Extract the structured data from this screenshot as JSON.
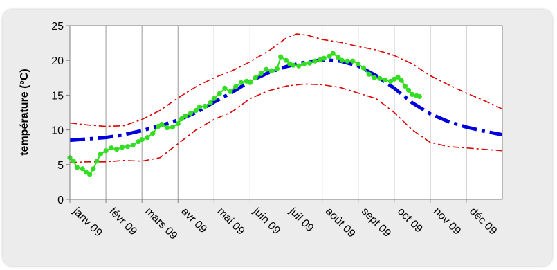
{
  "chart_data": {
    "type": "line",
    "title": "",
    "xlabel": "",
    "ylabel": "température (°C)",
    "categories": [
      "janv 09",
      "févr 09",
      "mars 09",
      "avr 09",
      "mai 09",
      "juin 09",
      "juil 09",
      "août 09",
      "sept 09",
      "oct 09",
      "nov 09",
      "déc 09"
    ],
    "xlim": [
      0,
      12
    ],
    "ylim": [
      0,
      25
    ],
    "yticks": [
      0,
      5,
      10,
      15,
      20,
      25
    ],
    "grid": "vertical",
    "legend": "none",
    "series": [
      {
        "color": "#0000dd",
        "style": "dash-dot-thick",
        "points": [
          [
            0,
            8.5
          ],
          [
            0.5,
            8.7
          ],
          [
            1,
            8.9
          ],
          [
            1.5,
            9.3
          ],
          [
            2,
            9.9
          ],
          [
            2.5,
            10.6
          ],
          [
            3,
            11.4
          ],
          [
            3.5,
            12.5
          ],
          [
            4,
            14.0
          ],
          [
            4.5,
            15.4
          ],
          [
            5,
            17.0
          ],
          [
            5.5,
            18.2
          ],
          [
            6,
            19.1
          ],
          [
            6.5,
            19.7
          ],
          [
            7,
            20.1
          ],
          [
            7.5,
            19.9
          ],
          [
            8,
            19.2
          ],
          [
            8.5,
            17.8
          ],
          [
            9,
            16.0
          ],
          [
            9.5,
            13.9
          ],
          [
            10,
            12.3
          ],
          [
            10.5,
            11.2
          ],
          [
            11,
            10.4
          ],
          [
            11.5,
            9.8
          ],
          [
            12,
            9.3
          ]
        ]
      },
      {
        "color": "#dd0000",
        "style": "dash-dot-thin",
        "points": [
          [
            0,
            11.0
          ],
          [
            0.5,
            10.7
          ],
          [
            1,
            10.5
          ],
          [
            1.5,
            10.6
          ],
          [
            2,
            11.5
          ],
          [
            2.5,
            12.8
          ],
          [
            3,
            14.6
          ],
          [
            3.5,
            16.2
          ],
          [
            4,
            17.5
          ],
          [
            4.5,
            18.5
          ],
          [
            5,
            19.8
          ],
          [
            5.5,
            21.3
          ],
          [
            6,
            23.2
          ],
          [
            6.3,
            23.8
          ],
          [
            6.6,
            23.6
          ],
          [
            7,
            23.0
          ],
          [
            7.5,
            22.6
          ],
          [
            8,
            22.0
          ],
          [
            8.5,
            21.5
          ],
          [
            9,
            20.7
          ],
          [
            9.5,
            19.5
          ],
          [
            10,
            17.8
          ],
          [
            10.5,
            16.5
          ],
          [
            11,
            15.3
          ],
          [
            11.5,
            14.2
          ],
          [
            12,
            13.0
          ]
        ]
      },
      {
        "color": "#dd0000",
        "style": "dash-dot-thin",
        "points": [
          [
            0,
            5.3
          ],
          [
            0.5,
            5.4
          ],
          [
            1,
            5.4
          ],
          [
            1.5,
            5.6
          ],
          [
            2,
            5.5
          ],
          [
            2.5,
            6.0
          ],
          [
            3,
            8.0
          ],
          [
            3.5,
            10.0
          ],
          [
            4,
            11.5
          ],
          [
            4.5,
            12.6
          ],
          [
            5,
            14.5
          ],
          [
            5.5,
            15.6
          ],
          [
            6,
            16.3
          ],
          [
            6.5,
            16.6
          ],
          [
            7,
            16.5
          ],
          [
            7.5,
            16.1
          ],
          [
            8,
            15.3
          ],
          [
            8.5,
            14.5
          ],
          [
            9,
            12.5
          ],
          [
            9.5,
            10.0
          ],
          [
            10,
            8.2
          ],
          [
            10.5,
            7.6
          ],
          [
            11,
            7.4
          ],
          [
            11.5,
            7.2
          ],
          [
            12,
            7.0
          ]
        ]
      },
      {
        "color": "#33dd22",
        "style": "markers",
        "points": [
          [
            0,
            6.0
          ],
          [
            0.1,
            5.5
          ],
          [
            0.2,
            4.6
          ],
          [
            0.35,
            4.4
          ],
          [
            0.45,
            3.9
          ],
          [
            0.55,
            3.6
          ],
          [
            0.65,
            4.4
          ],
          [
            0.75,
            5.5
          ],
          [
            0.85,
            6.5
          ],
          [
            1,
            7.0
          ],
          [
            1.15,
            7.4
          ],
          [
            1.3,
            7.2
          ],
          [
            1.45,
            7.5
          ],
          [
            1.6,
            7.6
          ],
          [
            1.75,
            7.8
          ],
          [
            1.9,
            8.3
          ],
          [
            2,
            8.6
          ],
          [
            2.15,
            8.9
          ],
          [
            2.3,
            9.5
          ],
          [
            2.45,
            10.5
          ],
          [
            2.55,
            10.8
          ],
          [
            2.7,
            10.3
          ],
          [
            2.85,
            10.4
          ],
          [
            3,
            10.9
          ],
          [
            3.1,
            11.6
          ],
          [
            3.2,
            12.0
          ],
          [
            3.35,
            12.4
          ],
          [
            3.5,
            12.8
          ],
          [
            3.6,
            13.3
          ],
          [
            3.75,
            13.4
          ],
          [
            3.9,
            13.9
          ],
          [
            4,
            14.5
          ],
          [
            4.15,
            15.2
          ],
          [
            4.3,
            16.0
          ],
          [
            4.45,
            15.5
          ],
          [
            4.6,
            16.2
          ],
          [
            4.75,
            16.8
          ],
          [
            4.9,
            17.0
          ],
          [
            5,
            16.8
          ],
          [
            5.15,
            17.5
          ],
          [
            5.3,
            18.1
          ],
          [
            5.45,
            18.7
          ],
          [
            5.6,
            18.5
          ],
          [
            5.75,
            18.8
          ],
          [
            5.85,
            20.5
          ],
          [
            6,
            20.0
          ],
          [
            6.1,
            19.5
          ],
          [
            6.2,
            19.3
          ],
          [
            6.35,
            19.2
          ],
          [
            6.5,
            19.5
          ],
          [
            6.65,
            19.6
          ],
          [
            6.8,
            19.9
          ],
          [
            6.95,
            20.1
          ],
          [
            7.05,
            20.3
          ],
          [
            7.2,
            20.6
          ],
          [
            7.3,
            21.0
          ],
          [
            7.45,
            20.4
          ],
          [
            7.55,
            20.0
          ],
          [
            7.7,
            19.9
          ],
          [
            7.85,
            19.9
          ],
          [
            8,
            19.5
          ],
          [
            8.15,
            18.9
          ],
          [
            8.3,
            18.0
          ],
          [
            8.45,
            17.5
          ],
          [
            8.6,
            17.4
          ],
          [
            8.75,
            17.2
          ],
          [
            8.9,
            17.0
          ],
          [
            9,
            17.3
          ],
          [
            9.1,
            17.6
          ],
          [
            9.2,
            17.1
          ],
          [
            9.3,
            16.3
          ],
          [
            9.4,
            15.7
          ],
          [
            9.5,
            15.1
          ],
          [
            9.62,
            14.9
          ],
          [
            9.7,
            14.8
          ]
        ]
      }
    ]
  }
}
